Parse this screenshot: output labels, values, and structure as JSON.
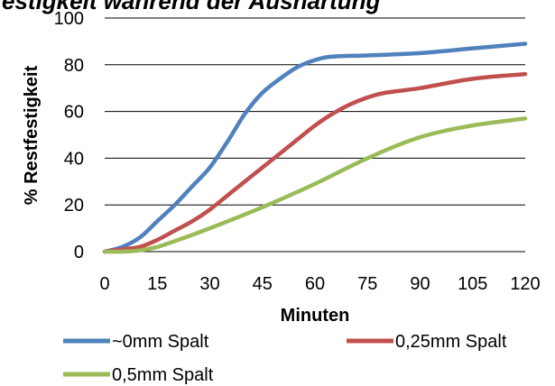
{
  "chart_data": {
    "type": "line",
    "title": "estigkeit während der Aushärtung",
    "xlabel": "Minuten",
    "ylabel": "% Restfestigkeit",
    "xlim": [
      0,
      120
    ],
    "ylim": [
      0,
      100
    ],
    "x_ticks": [
      "0",
      "15",
      "30",
      "45",
      "60",
      "75",
      "90",
      "105",
      "120"
    ],
    "y_ticks": [
      "0",
      "20",
      "40",
      "60",
      "80",
      "100"
    ],
    "grid": true,
    "legend_position": "bottom",
    "series": [
      {
        "name": "~0mm Spalt",
        "color": "#4F81BD",
        "points": [
          [
            0,
            0
          ],
          [
            5,
            2
          ],
          [
            10,
            6
          ],
          [
            15,
            13
          ],
          [
            20,
            20
          ],
          [
            25,
            28
          ],
          [
            30,
            36
          ],
          [
            35,
            47
          ],
          [
            40,
            59
          ],
          [
            45,
            68
          ],
          [
            50,
            74
          ],
          [
            55,
            79
          ],
          [
            60,
            82
          ],
          [
            65,
            83.5
          ],
          [
            75,
            84
          ],
          [
            90,
            85
          ],
          [
            105,
            87
          ],
          [
            120,
            89
          ]
        ]
      },
      {
        "name": "0,25mm Spalt",
        "color": "#C0504D",
        "points": [
          [
            0,
            0
          ],
          [
            5,
            1
          ],
          [
            10,
            2
          ],
          [
            15,
            5
          ],
          [
            20,
            9
          ],
          [
            25,
            13
          ],
          [
            30,
            18
          ],
          [
            35,
            24
          ],
          [
            40,
            30
          ],
          [
            45,
            36
          ],
          [
            50,
            42
          ],
          [
            55,
            48
          ],
          [
            60,
            54
          ],
          [
            65,
            59
          ],
          [
            70,
            63
          ],
          [
            75,
            66
          ],
          [
            80,
            68
          ],
          [
            90,
            70
          ],
          [
            105,
            74
          ],
          [
            120,
            76
          ]
        ]
      },
      {
        "name": "0,5mm Spalt",
        "color": "#9BBB59",
        "points": [
          [
            0,
            0
          ],
          [
            5,
            0
          ],
          [
            10,
            0.5
          ],
          [
            15,
            2
          ],
          [
            20,
            4.5
          ],
          [
            30,
            10
          ],
          [
            45,
            19
          ],
          [
            60,
            29
          ],
          [
            75,
            40
          ],
          [
            90,
            49
          ],
          [
            105,
            54
          ],
          [
            120,
            57
          ]
        ]
      }
    ]
  }
}
